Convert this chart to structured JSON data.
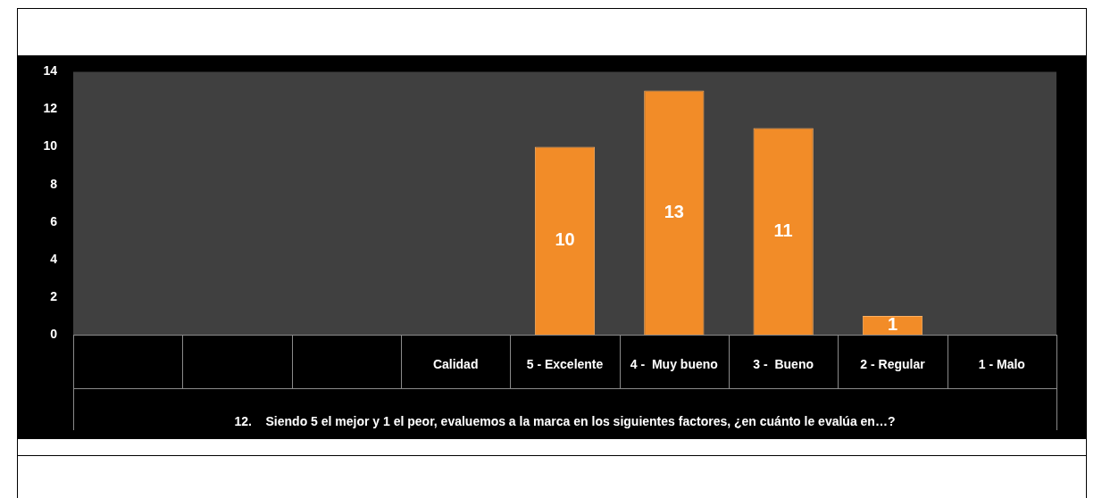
{
  "chart_data": {
    "type": "bar",
    "categories": [
      null,
      null,
      null,
      "Calidad",
      "5 - Excelente",
      "4 -  Muy bueno",
      "3 -  Bueno",
      "2 - Regular",
      "1 - Malo"
    ],
    "values": [
      null,
      null,
      null,
      null,
      10,
      13,
      11,
      1,
      null
    ],
    "color": "#f28c28",
    "xlabel": "12.    Siendo 5 el mejor y 1 el peor, evaluemos a la marca en los siguientes factores, ¿en cuánto le evalúa en…?",
    "ylim": [
      0,
      14
    ],
    "yticks": [
      0,
      2,
      4,
      6,
      8,
      10,
      12,
      14
    ],
    "grid": false,
    "legend": false,
    "data_labels": true
  }
}
